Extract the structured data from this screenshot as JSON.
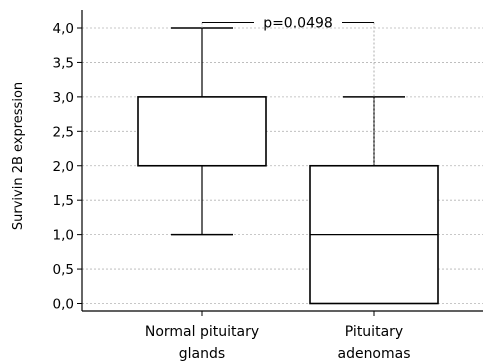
{
  "chart_data": {
    "type": "box",
    "title": "",
    "ylabel": "Survivin 2B expression",
    "xlabel": "",
    "ylim": [
      0,
      4.1
    ],
    "yticks": [
      0,
      0.5,
      1,
      1.5,
      2,
      2.5,
      3,
      3.5,
      4
    ],
    "ytick_labels": [
      "0,0",
      "0,5",
      "1,0",
      "1,5",
      "2,0",
      "2,5",
      "3,0",
      "3,5",
      "4,0"
    ],
    "grid": "horizontal-dashed",
    "categories": [
      {
        "line1": "Normal pituitary",
        "line2": "glands"
      },
      {
        "line1": "Pituitary",
        "line2": "adenomas"
      }
    ],
    "boxes": [
      {
        "min": 1.0,
        "q1": 2.0,
        "median": 2.0,
        "q3": 3.0,
        "max": 4.0
      },
      {
        "min": 0.0,
        "q1": 0.0,
        "median": 1.0,
        "q3": 2.0,
        "max": 3.0
      }
    ],
    "annotation": {
      "text": "p=0.0498",
      "y": 4.08,
      "from": 0,
      "to": 1
    }
  }
}
